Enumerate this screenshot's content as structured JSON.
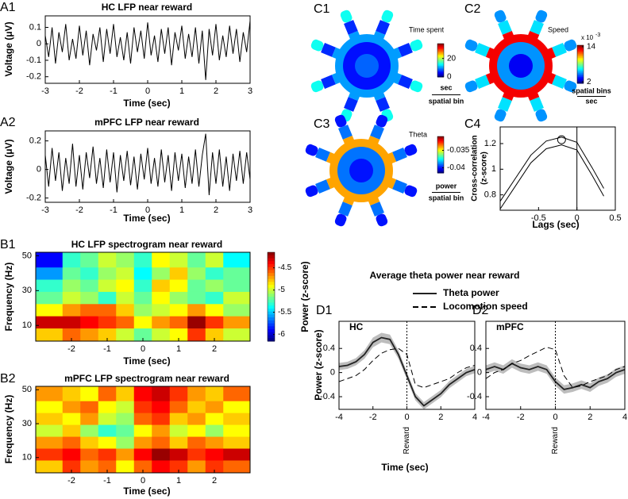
{
  "chart_data": [
    {
      "type": "line",
      "label": "A1",
      "title": "HC LFP near reward",
      "xlabel": "Time (sec)",
      "ylabel": "Voltage (μV)",
      "xlim": [
        -3,
        3
      ],
      "ylim": [
        -0.24,
        0.17
      ],
      "xticks": [
        -3,
        -2,
        -1,
        0,
        1,
        2,
        3
      ],
      "yticks": [
        0.1,
        0,
        -0.1,
        -0.2
      ],
      "x": [
        -3,
        -2.9,
        -2.8,
        -2.7,
        -2.6,
        -2.5,
        -2.4,
        -2.3,
        -2.2,
        -2.1,
        -2,
        -1.9,
        -1.8,
        -1.7,
        -1.6,
        -1.5,
        -1.4,
        -1.3,
        -1.2,
        -1.1,
        -1,
        -0.9,
        -0.8,
        -0.7,
        -0.6,
        -0.5,
        -0.4,
        -0.3,
        -0.2,
        -0.1,
        0,
        0.1,
        0.2,
        0.3,
        0.4,
        0.5,
        0.6,
        0.7,
        0.8,
        0.9,
        1,
        1.1,
        1.2,
        1.3,
        1.4,
        1.5,
        1.6,
        1.7,
        1.8,
        1.9,
        2,
        2.1,
        2.2,
        2.3,
        2.4,
        2.5,
        2.6,
        2.7,
        2.8,
        2.9,
        3
      ],
      "series": [
        {
          "color": "#000000",
          "values": [
            0.05,
            -0.08,
            0.1,
            -0.12,
            0.07,
            -0.05,
            0.12,
            -0.1,
            0.03,
            -0.09,
            0.11,
            -0.07,
            0.08,
            -0.13,
            0.06,
            -0.04,
            0.1,
            -0.11,
            0.09,
            -0.06,
            0.12,
            -0.08,
            0.04,
            -0.1,
            0.07,
            -0.12,
            0.1,
            -0.05,
            0.08,
            -0.09,
            0.13,
            -0.07,
            0.05,
            -0.11,
            0.09,
            -0.06,
            0.1,
            -0.13,
            0.07,
            -0.04,
            0.11,
            -0.09,
            0.06,
            -0.08,
            0.1,
            -0.12,
            0.08,
            -0.22,
            0.09,
            -0.07,
            0.12,
            -0.1,
            0.05,
            -0.08,
            0.11,
            -0.06,
            0.09,
            -0.11,
            0.07,
            -0.05,
            0.14
          ]
        }
      ]
    },
    {
      "type": "line",
      "label": "A2",
      "title": "mPFC LFP near reward",
      "xlabel": "Time (sec)",
      "ylabel": "Voltage (μV)",
      "xlim": [
        -3,
        3
      ],
      "ylim": [
        -0.23,
        0.27
      ],
      "xticks": [
        -3,
        -2,
        -1,
        0,
        1,
        2,
        3
      ],
      "yticks": [
        0.2,
        0,
        -0.2
      ],
      "x": [
        -3,
        -2.9,
        -2.8,
        -2.7,
        -2.6,
        -2.5,
        -2.4,
        -2.3,
        -2.2,
        -2.1,
        -2,
        -1.9,
        -1.8,
        -1.7,
        -1.6,
        -1.5,
        -1.4,
        -1.3,
        -1.2,
        -1.1,
        -1,
        -0.9,
        -0.8,
        -0.7,
        -0.6,
        -0.5,
        -0.4,
        -0.3,
        -0.2,
        -0.1,
        0,
        0.1,
        0.2,
        0.3,
        0.4,
        0.5,
        0.6,
        0.7,
        0.8,
        0.9,
        1,
        1.1,
        1.2,
        1.3,
        1.4,
        1.5,
        1.6,
        1.7,
        1.8,
        1.9,
        2,
        2.1,
        2.2,
        2.3,
        2.4,
        2.5,
        2.6,
        2.7,
        2.8,
        2.9,
        3
      ],
      "series": [
        {
          "color": "#000000",
          "values": [
            0.1,
            -0.12,
            0.15,
            -0.08,
            0.12,
            -0.15,
            0.08,
            -0.1,
            0.18,
            -0.12,
            0.1,
            -0.14,
            0.12,
            -0.06,
            0.16,
            -0.1,
            0.08,
            -0.13,
            0.14,
            -0.09,
            0.12,
            -0.16,
            0.1,
            -0.08,
            0.13,
            -0.11,
            0.09,
            -0.14,
            0.11,
            -0.07,
            0.15,
            -0.1,
            0.08,
            -0.12,
            0.14,
            -0.09,
            0.1,
            -0.15,
            0.12,
            -0.08,
            0.11,
            -0.13,
            0.09,
            -0.1,
            0.14,
            -0.12,
            0.1,
            0.25,
            -0.18,
            0.12,
            -0.1,
            0.14,
            -0.12,
            0.09,
            -0.15,
            0.11,
            -0.08,
            0.13,
            -0.1,
            0.12,
            -0.07
          ]
        }
      ]
    },
    {
      "type": "heatmap",
      "label": "B1",
      "title": "HC LFP spectrogram near reward",
      "xlabel": "Time (sec)",
      "ylabel": "Frequency (Hz)",
      "clabel": "Power (z-score)",
      "xlim": [
        -3,
        3
      ],
      "ylim": [
        1,
        52
      ],
      "xticks": [
        -2,
        -1,
        0,
        1,
        2
      ],
      "yticks": [
        10,
        30,
        50
      ],
      "clim": [
        -6.15,
        -4.15
      ],
      "cticks": [
        -4.5,
        -5,
        -5.5,
        -6
      ],
      "x": [
        -2.5,
        -2,
        -1.5,
        -1,
        -0.5,
        0,
        0.5,
        1,
        1.5,
        2,
        2.5
      ],
      "y": [
        5,
        12,
        19,
        26,
        33,
        40,
        47
      ],
      "z": [
        [
          -4.8,
          -4.6,
          -4.7,
          -4.8,
          -5.0,
          -5.2,
          -5.0,
          -4.9,
          -4.5,
          -4.8,
          -5.0
        ],
        [
          -4.3,
          -4.3,
          -4.4,
          -4.5,
          -4.6,
          -4.9,
          -4.7,
          -4.6,
          -4.2,
          -4.5,
          -4.7
        ],
        [
          -4.9,
          -4.7,
          -4.6,
          -4.6,
          -4.8,
          -5.1,
          -5.0,
          -4.9,
          -4.7,
          -4.9,
          -5.1
        ],
        [
          -5.2,
          -5.0,
          -5.1,
          -5.3,
          -5.0,
          -5.2,
          -4.9,
          -5.1,
          -5.2,
          -5.3,
          -5.0
        ],
        [
          -5.3,
          -5.1,
          -5.2,
          -5.0,
          -4.9,
          -5.3,
          -4.8,
          -4.9,
          -5.2,
          -5.1,
          -5.2
        ],
        [
          -5.6,
          -5.2,
          -5.3,
          -5.1,
          -5.0,
          -5.4,
          -5.1,
          -4.8,
          -5.1,
          -5.3,
          -5.2
        ],
        [
          -5.9,
          -5.3,
          -5.2,
          -5.0,
          -5.1,
          -5.3,
          -4.9,
          -5.0,
          -5.2,
          -5.0,
          -5.4
        ]
      ]
    },
    {
      "type": "heatmap",
      "label": "B2",
      "title": "mPFC LFP spectrogram near reward",
      "xlabel": "Time (sec)",
      "ylabel": "Frequency (Hz)",
      "xlim": [
        -3,
        3
      ],
      "ylim": [
        1,
        52
      ],
      "xticks": [
        -2,
        -1,
        0,
        1,
        2
      ],
      "yticks": [
        10,
        30,
        50
      ],
      "clim": [
        -6.15,
        -4.15
      ],
      "x": [
        -2.5,
        -2,
        -1.5,
        -1,
        -0.5,
        0,
        0.5,
        1,
        1.5,
        2,
        2.5
      ],
      "y": [
        5,
        12,
        19,
        26,
        33,
        40,
        47
      ],
      "z": [
        [
          -4.8,
          -4.5,
          -4.7,
          -4.6,
          -4.9,
          -4.6,
          -4.4,
          -4.5,
          -4.7,
          -4.5,
          -4.6
        ],
        [
          -4.5,
          -4.4,
          -4.6,
          -4.5,
          -4.7,
          -4.4,
          -4.2,
          -4.3,
          -4.5,
          -4.4,
          -4.3
        ],
        [
          -4.7,
          -4.6,
          -4.8,
          -4.9,
          -5.1,
          -4.7,
          -4.6,
          -4.8,
          -4.6,
          -4.7,
          -4.8
        ],
        [
          -5.0,
          -4.8,
          -5.1,
          -5.3,
          -5.2,
          -4.9,
          -4.7,
          -5.0,
          -4.9,
          -5.1,
          -4.9
        ],
        [
          -4.8,
          -4.9,
          -4.7,
          -5.0,
          -5.1,
          -4.6,
          -4.5,
          -4.8,
          -4.7,
          -4.9,
          -4.8
        ],
        [
          -4.9,
          -4.7,
          -4.6,
          -4.9,
          -5.0,
          -4.5,
          -4.4,
          -4.6,
          -4.8,
          -4.7,
          -4.9
        ],
        [
          -4.7,
          -4.8,
          -4.9,
          -4.6,
          -4.8,
          -4.4,
          -4.3,
          -4.5,
          -4.7,
          -4.8,
          -4.6
        ]
      ]
    },
    {
      "type": "maze",
      "label": "C1",
      "name": "Time spent",
      "unit_top": "sec",
      "unit_bottom": "spatial bin",
      "clim": [
        0,
        36
      ],
      "cticks": [
        20,
        0
      ],
      "values": [
        8,
        5,
        10,
        6,
        14
      ]
    },
    {
      "type": "maze",
      "label": "C2",
      "name": "Speed",
      "unit_top": "spatial bins",
      "unit_bottom": "sec",
      "scale_label": "x 10",
      "scale_exponent": "-3",
      "clim": [
        1.5,
        14.5
      ],
      "cticks": [
        14,
        2
      ],
      "values": [
        3,
        5,
        13,
        6,
        5
      ]
    },
    {
      "type": "maze",
      "label": "C3",
      "name": "Theta",
      "unit_top": "power",
      "unit_bottom": "spatial bin",
      "clim": [
        -0.0415,
        -0.031
      ],
      "cticks": [
        -0.035,
        -0.04
      ],
      "values": [
        -0.04,
        -0.039,
        -0.034,
        -0.039,
        -0.04
      ]
    },
    {
      "type": "line",
      "label": "C4",
      "xlabel": "Lags (sec)",
      "ylabel": [
        "Cross-correlation",
        "(z-score)"
      ],
      "xlim": [
        -1,
        0.5
      ],
      "ylim": [
        0.68,
        1.33
      ],
      "xticks": [
        -0.5,
        0,
        0.5
      ],
      "yticks": [
        0.8,
        1,
        1.2
      ],
      "vline": 0,
      "peak": {
        "x": -0.2,
        "y": 1.23
      },
      "x": [
        -1,
        -0.8,
        -0.6,
        -0.4,
        -0.2,
        0,
        0.2,
        0.35
      ],
      "series": [
        {
          "color": "#000000",
          "values": [
            0.75,
            0.93,
            1.11,
            1.22,
            1.25,
            1.21,
            1.01,
            0.85
          ]
        },
        {
          "color": "#000000",
          "values": [
            0.69,
            0.87,
            1.05,
            1.16,
            1.19,
            1.15,
            0.95,
            0.79
          ]
        }
      ]
    },
    {
      "type": "line",
      "label": "D1",
      "title": "Average theta power near reward",
      "panel_title": "HC",
      "xlabel": "Time (sec)",
      "ylabel": "Power (z-score)",
      "annotation": "Reward",
      "vline": 0,
      "xlim": [
        -4,
        4
      ],
      "ylim": [
        -0.61,
        0.85
      ],
      "xticks": [
        -4,
        -2,
        0,
        2,
        4
      ],
      "yticks": [
        -0.4,
        0,
        0.4
      ],
      "x": [
        -4,
        -3.5,
        -3,
        -2.5,
        -2,
        -1.5,
        -1,
        -0.5,
        0,
        0.5,
        1,
        1.5,
        2,
        2.5,
        3,
        3.5,
        4
      ],
      "series": [
        {
          "name": "Theta power",
          "color": "#222222",
          "band_color": "#bdbdbd",
          "values": [
            0.1,
            0.12,
            0.18,
            0.3,
            0.5,
            0.58,
            0.55,
            0.3,
            -0.05,
            -0.4,
            -0.55,
            -0.45,
            -0.35,
            -0.2,
            -0.1,
            0,
            0.05
          ],
          "error": [
            0.06,
            0.06,
            0.06,
            0.07,
            0.08,
            0.08,
            0.08,
            0.07,
            0.06,
            0.06,
            0.06,
            0.06,
            0.06,
            0.06,
            0.06,
            0.06,
            0.06
          ]
        },
        {
          "name": "Locomotion speed",
          "color": "#000000",
          "dash": true,
          "values": [
            -0.15,
            -0.1,
            -0.05,
            0.05,
            0.2,
            0.32,
            0.38,
            0.4,
            0.3,
            -0.2,
            -0.25,
            -0.2,
            -0.15,
            -0.1,
            0,
            0.08,
            0.12
          ]
        }
      ]
    },
    {
      "type": "line",
      "label": "D2",
      "panel_title": "mPFC",
      "annotation": "Reward",
      "vline": 0,
      "xlim": [
        -4,
        4
      ],
      "ylim": [
        -0.61,
        0.85
      ],
      "xticks": [
        -4,
        -2,
        0,
        2,
        4
      ],
      "yticks": [
        -0.4,
        0,
        0.4
      ],
      "x": [
        -4,
        -3.5,
        -3,
        -2.5,
        -2,
        -1.5,
        -1,
        -0.5,
        0,
        0.5,
        1,
        1.5,
        2,
        2.5,
        3,
        3.5,
        4
      ],
      "series": [
        {
          "color": "#222222",
          "band_color": "#bdbdbd",
          "values": [
            0.05,
            0.1,
            0.05,
            0.15,
            0.08,
            0.05,
            0.1,
            0.05,
            -0.15,
            -0.28,
            -0.25,
            -0.2,
            -0.25,
            -0.15,
            -0.1,
            0,
            0.05
          ],
          "error": [
            0.07,
            0.07,
            0.07,
            0.07,
            0.07,
            0.07,
            0.07,
            0.07,
            0.07,
            0.07,
            0.07,
            0.07,
            0.07,
            0.07,
            0.07,
            0.07,
            0.07
          ]
        },
        {
          "color": "#000000",
          "dash": true,
          "values": [
            -0.1,
            0,
            0.05,
            0.15,
            0.2,
            0.28,
            0.35,
            0.42,
            0.38,
            -0.05,
            -0.25,
            -0.22,
            -0.15,
            -0.1,
            -0.05,
            0.05,
            0.1
          ]
        }
      ]
    }
  ]
}
